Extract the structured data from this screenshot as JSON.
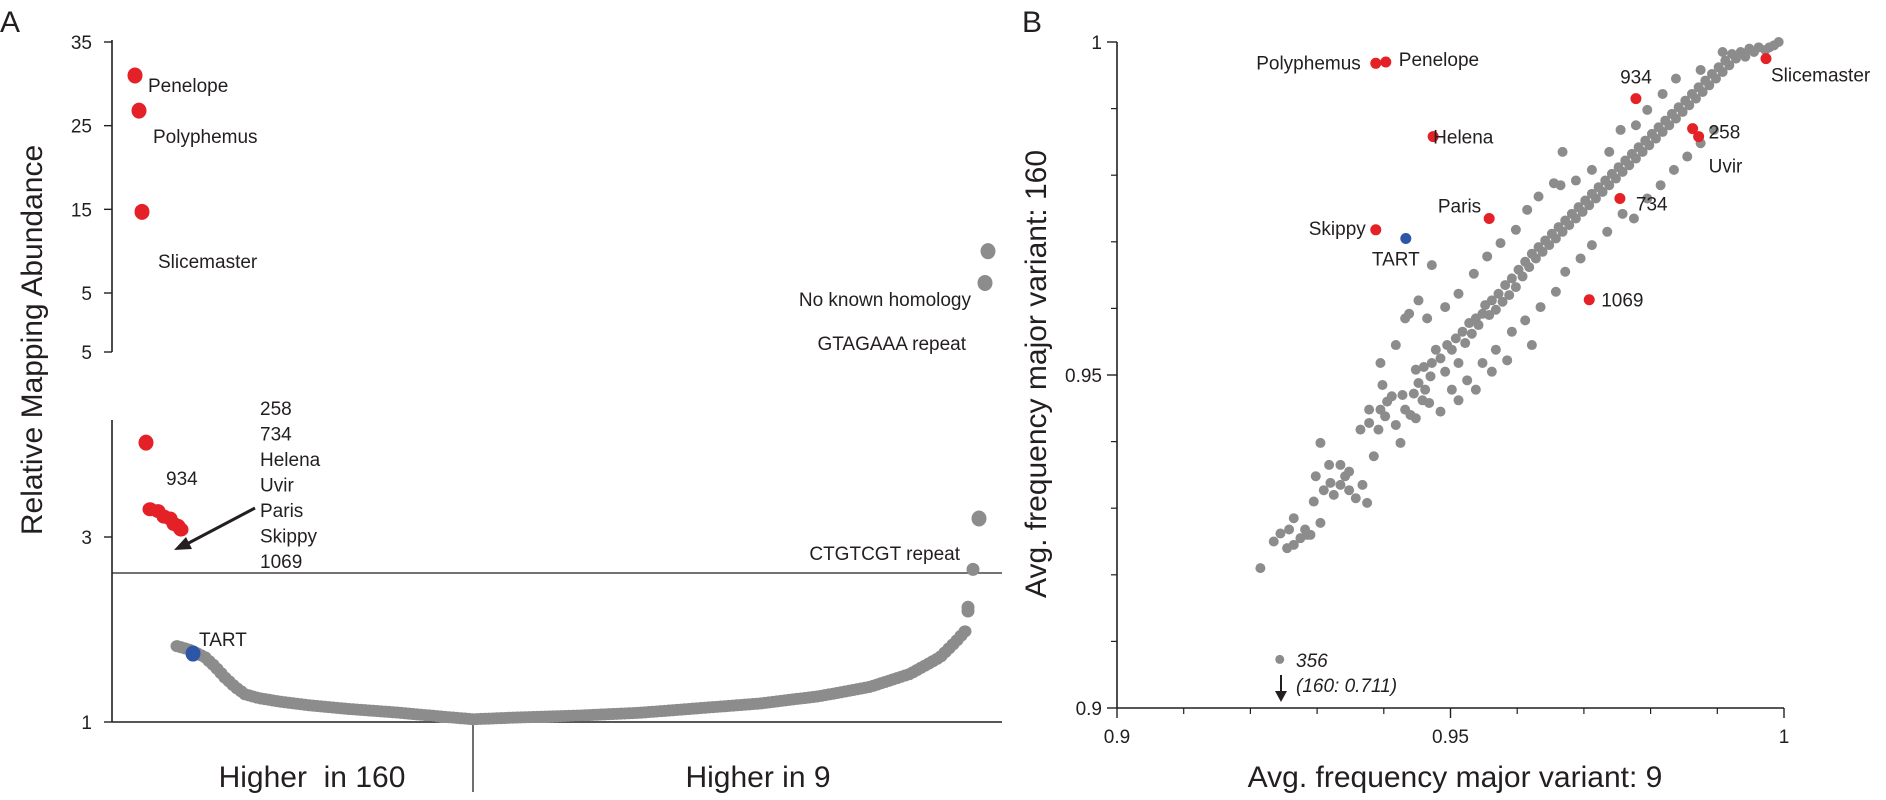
{
  "chart_data": [
    {
      "panel": "A",
      "type": "scatter",
      "ylabel": "Relative Mapping Abundance",
      "x_categories": [
        "Higher  in 160",
        "Higher in 9"
      ],
      "y_axis_lower": {
        "ticks": [
          1,
          3,
          5
        ],
        "range": [
          1,
          5
        ],
        "reference_line": 3
      },
      "y_axis_upper": {
        "ticks": [
          5,
          15,
          25,
          35
        ],
        "range": [
          5,
          35
        ]
      },
      "grid": false,
      "labeled_points": [
        {
          "name": "Penelope",
          "y": 31.0,
          "group": "Higher in 160",
          "color": "#e32126"
        },
        {
          "name": "Polyphemus",
          "y": 26.8,
          "group": "Higher in 160",
          "color": "#e32126"
        },
        {
          "name": "Slicemaster",
          "y": 14.7,
          "group": "Higher in 160",
          "color": "#e32126"
        },
        {
          "name": "934",
          "y": 4.02,
          "group": "Higher in 160",
          "color": "#e32126"
        },
        {
          "name": "TART",
          "y": 1.74,
          "group": "Higher in 160",
          "color": "#2e56a6"
        },
        {
          "name": "No known homology",
          "y": 10.0,
          "group": "Higher in 9",
          "color": "#8c8c8c"
        },
        {
          "name": "GTAGAAA repeat",
          "y": 6.2,
          "group": "Higher in 9",
          "color": "#8c8c8c"
        },
        {
          "name": "CTGTCGT repeat",
          "y": 3.2,
          "group": "Higher in 9",
          "color": "#8c8c8c"
        }
      ],
      "cluster_points": {
        "names": [
          "258",
          "734",
          "Helena",
          "Uvir",
          "Paris",
          "Skippy",
          "1069"
        ],
        "y": [
          3.3,
          3.28,
          3.22,
          3.2,
          3.14,
          3.12,
          3.08
        ],
        "color": "#e32126"
      }
    },
    {
      "panel": "B",
      "type": "scatter",
      "xlabel": "Avg. frequency major variant: 9",
      "ylabel": "Avg. frequency major variant: 160",
      "xlim": [
        0.9,
        1.0
      ],
      "ylim": [
        0.9,
        1.0
      ],
      "xticks": [
        "0.9",
        "0.95",
        "1"
      ],
      "yticks": [
        "0.9",
        "0.95",
        "1"
      ],
      "grid": false,
      "labeled_points": [
        {
          "name": "Polyphemus",
          "x": 0.9388,
          "y": 0.9968,
          "color": "#e32126"
        },
        {
          "name": "Penelope",
          "x": 0.9403,
          "y": 0.997,
          "color": "#e32126"
        },
        {
          "name": "934",
          "x": 0.9778,
          "y": 0.9915,
          "color": "#e32126"
        },
        {
          "name": "Slicemaster",
          "x": 0.9973,
          "y": 0.9975,
          "color": "#e32126"
        },
        {
          "name": "Helena",
          "x": 0.9474,
          "y": 0.9858,
          "color": "#e32126"
        },
        {
          "name": "258",
          "x": 0.9863,
          "y": 0.987,
          "color": "#e32126"
        },
        {
          "name": "Uvir",
          "x": 0.9872,
          "y": 0.9858,
          "color": "#e32126"
        },
        {
          "name": "734",
          "x": 0.9754,
          "y": 0.9765,
          "color": "#e32126"
        },
        {
          "name": "Paris",
          "x": 0.9558,
          "y": 0.9735,
          "color": "#e32126"
        },
        {
          "name": "Skippy",
          "x": 0.9388,
          "y": 0.9718,
          "color": "#e32126"
        },
        {
          "name": "TART",
          "x": 0.9433,
          "y": 0.9705,
          "color": "#2e56a6"
        },
        {
          "name": "1069",
          "x": 0.9708,
          "y": 0.9613,
          "color": "#e32126"
        }
      ],
      "outlier_annotation": {
        "id": "356",
        "note": "(160: 0.711)",
        "x": 0.9244,
        "y": 0.9073
      },
      "background_points": {
        "color": "#8c8c8c",
        "points": [
          [
            0.9215,
            0.921
          ],
          [
            0.9235,
            0.925
          ],
          [
            0.9255,
            0.924
          ],
          [
            0.9265,
            0.9245
          ],
          [
            0.9275,
            0.9255
          ],
          [
            0.9285,
            0.926
          ],
          [
            0.9265,
            0.9285
          ],
          [
            0.929,
            0.926
          ],
          [
            0.9305,
            0.9278
          ],
          [
            0.9295,
            0.931
          ],
          [
            0.931,
            0.9327
          ],
          [
            0.9325,
            0.932
          ],
          [
            0.932,
            0.9338
          ],
          [
            0.9335,
            0.9335
          ],
          [
            0.9348,
            0.9327
          ],
          [
            0.9335,
            0.9365
          ],
          [
            0.9348,
            0.9355
          ],
          [
            0.9358,
            0.9315
          ],
          [
            0.9368,
            0.9335
          ],
          [
            0.9375,
            0.9308
          ],
          [
            0.9305,
            0.9398
          ],
          [
            0.9385,
            0.9378
          ],
          [
            0.9378,
            0.9428
          ],
          [
            0.9392,
            0.9418
          ],
          [
            0.9402,
            0.9438
          ],
          [
            0.9395,
            0.9448
          ],
          [
            0.9405,
            0.946
          ],
          [
            0.9418,
            0.9425
          ],
          [
            0.9425,
            0.9398
          ],
          [
            0.9432,
            0.9448
          ],
          [
            0.9428,
            0.947
          ],
          [
            0.944,
            0.944
          ],
          [
            0.9448,
            0.9435
          ],
          [
            0.9445,
            0.9472
          ],
          [
            0.9458,
            0.9462
          ],
          [
            0.9462,
            0.9478
          ],
          [
            0.9452,
            0.9488
          ],
          [
            0.9448,
            0.9508
          ],
          [
            0.946,
            0.9512
          ],
          [
            0.947,
            0.9498
          ],
          [
            0.9472,
            0.9518
          ],
          [
            0.9478,
            0.9538
          ],
          [
            0.9485,
            0.9525
          ],
          [
            0.9492,
            0.9505
          ],
          [
            0.9495,
            0.9545
          ],
          [
            0.9502,
            0.9538
          ],
          [
            0.9508,
            0.9555
          ],
          [
            0.9512,
            0.9518
          ],
          [
            0.9518,
            0.9565
          ],
          [
            0.9522,
            0.9548
          ],
          [
            0.9528,
            0.9578
          ],
          [
            0.9532,
            0.9562
          ],
          [
            0.9538,
            0.9585
          ],
          [
            0.9542,
            0.9575
          ],
          [
            0.9548,
            0.9592
          ],
          [
            0.9552,
            0.9605
          ],
          [
            0.9558,
            0.959
          ],
          [
            0.9562,
            0.9612
          ],
          [
            0.9568,
            0.9598
          ],
          [
            0.9572,
            0.9622
          ],
          [
            0.9578,
            0.961
          ],
          [
            0.9582,
            0.9635
          ],
          [
            0.9588,
            0.962
          ],
          [
            0.9592,
            0.9645
          ],
          [
            0.9598,
            0.9632
          ],
          [
            0.9602,
            0.9658
          ],
          [
            0.9608,
            0.9648
          ],
          [
            0.9612,
            0.967
          ],
          [
            0.9618,
            0.9662
          ],
          [
            0.9622,
            0.9682
          ],
          [
            0.9628,
            0.9675
          ],
          [
            0.9632,
            0.9692
          ],
          [
            0.9638,
            0.9685
          ],
          [
            0.9642,
            0.9702
          ],
          [
            0.9648,
            0.9695
          ],
          [
            0.9652,
            0.9712
          ],
          [
            0.9658,
            0.9705
          ],
          [
            0.9662,
            0.9722
          ],
          [
            0.9668,
            0.9715
          ],
          [
            0.9672,
            0.9732
          ],
          [
            0.9678,
            0.9725
          ],
          [
            0.9682,
            0.9742
          ],
          [
            0.9688,
            0.9735
          ],
          [
            0.9692,
            0.9752
          ],
          [
            0.9698,
            0.9745
          ],
          [
            0.9702,
            0.9762
          ],
          [
            0.9708,
            0.9755
          ],
          [
            0.9712,
            0.9772
          ],
          [
            0.9718,
            0.9765
          ],
          [
            0.9722,
            0.9782
          ],
          [
            0.9728,
            0.9775
          ],
          [
            0.9732,
            0.9792
          ],
          [
            0.9738,
            0.9785
          ],
          [
            0.9742,
            0.9802
          ],
          [
            0.9748,
            0.9795
          ],
          [
            0.9752,
            0.9812
          ],
          [
            0.9758,
            0.9805
          ],
          [
            0.9762,
            0.9822
          ],
          [
            0.9768,
            0.9815
          ],
          [
            0.9772,
            0.9832
          ],
          [
            0.9778,
            0.9825
          ],
          [
            0.9782,
            0.9842
          ],
          [
            0.9788,
            0.9835
          ],
          [
            0.9792,
            0.9852
          ],
          [
            0.9798,
            0.9845
          ],
          [
            0.9802,
            0.9862
          ],
          [
            0.9808,
            0.9855
          ],
          [
            0.9812,
            0.9872
          ],
          [
            0.9818,
            0.9865
          ],
          [
            0.9822,
            0.9882
          ],
          [
            0.9828,
            0.9875
          ],
          [
            0.9832,
            0.9892
          ],
          [
            0.9838,
            0.9885
          ],
          [
            0.9842,
            0.9902
          ],
          [
            0.9848,
            0.9895
          ],
          [
            0.9852,
            0.9912
          ],
          [
            0.9858,
            0.9905
          ],
          [
            0.9862,
            0.9922
          ],
          [
            0.9868,
            0.9915
          ],
          [
            0.9872,
            0.9932
          ],
          [
            0.9878,
            0.9925
          ],
          [
            0.9882,
            0.9942
          ],
          [
            0.9888,
            0.9935
          ],
          [
            0.9892,
            0.9952
          ],
          [
            0.9898,
            0.9945
          ],
          [
            0.9902,
            0.9962
          ],
          [
            0.9908,
            0.9955
          ],
          [
            0.9912,
            0.9972
          ],
          [
            0.9918,
            0.9965
          ],
          [
            0.9922,
            0.9982
          ],
          [
            0.9928,
            0.9975
          ],
          [
            0.9935,
            0.9985
          ],
          [
            0.9942,
            0.9978
          ],
          [
            0.9948,
            0.999
          ],
          [
            0.9955,
            0.9985
          ],
          [
            0.9962,
            0.9992
          ],
          [
            0.9972,
            0.9988
          ],
          [
            0.9985,
            0.9995
          ],
          [
            0.9992,
            1.0
          ],
          [
            0.9978,
            0.9992
          ],
          [
            0.9395,
            0.9518
          ],
          [
            0.9418,
            0.9545
          ],
          [
            0.9432,
            0.9585
          ],
          [
            0.9452,
            0.9612
          ],
          [
            0.9465,
            0.9585
          ],
          [
            0.9492,
            0.9602
          ],
          [
            0.9512,
            0.9622
          ],
          [
            0.9535,
            0.9652
          ],
          [
            0.9555,
            0.9678
          ],
          [
            0.9575,
            0.9698
          ],
          [
            0.9598,
            0.9718
          ],
          [
            0.9615,
            0.9748
          ],
          [
            0.9632,
            0.9768
          ],
          [
            0.9655,
            0.9788
          ],
          [
            0.9668,
            0.9835
          ],
          [
            0.9688,
            0.9792
          ],
          [
            0.9712,
            0.9808
          ],
          [
            0.9738,
            0.9835
          ],
          [
            0.9755,
            0.9868
          ],
          [
            0.9778,
            0.9875
          ],
          [
            0.9795,
            0.9898
          ],
          [
            0.9818,
            0.9922
          ],
          [
            0.9838,
            0.9945
          ],
          [
            0.9875,
            0.9958
          ],
          [
            0.9908,
            0.9985
          ],
          [
            0.9502,
            0.9478
          ],
          [
            0.9525,
            0.9492
          ],
          [
            0.9548,
            0.9518
          ],
          [
            0.9568,
            0.9538
          ],
          [
            0.9592,
            0.9565
          ],
          [
            0.9612,
            0.9582
          ],
          [
            0.9635,
            0.9602
          ],
          [
            0.9658,
            0.9625
          ],
          [
            0.9672,
            0.9655
          ],
          [
            0.9695,
            0.9675
          ],
          [
            0.9712,
            0.9695
          ],
          [
            0.9735,
            0.9715
          ],
          [
            0.9758,
            0.9742
          ],
          [
            0.9775,
            0.9735
          ],
          [
            0.9795,
            0.9765
          ],
          [
            0.9815,
            0.9785
          ],
          [
            0.9835,
            0.9808
          ],
          [
            0.9855,
            0.9828
          ],
          [
            0.9875,
            0.9848
          ],
          [
            0.9895,
            0.9868
          ],
          [
            0.9472,
            0.9665
          ],
          [
            0.9665,
            0.9785
          ],
          [
            0.9438,
            0.9592
          ],
          [
            0.9468,
            0.9458
          ],
          [
            0.9485,
            0.9445
          ],
          [
            0.9512,
            0.9462
          ],
          [
            0.9538,
            0.9478
          ],
          [
            0.9562,
            0.9505
          ],
          [
            0.9585,
            0.9522
          ],
          [
            0.9622,
            0.9545
          ],
          [
            0.9365,
            0.9418
          ],
          [
            0.9378,
            0.9448
          ],
          [
            0.9412,
            0.9468
          ],
          [
            0.9398,
            0.9485
          ],
          [
            0.9342,
            0.9348
          ],
          [
            0.9318,
            0.9365
          ],
          [
            0.9298,
            0.9348
          ],
          [
            0.9282,
            0.9268
          ],
          [
            0.9258,
            0.9268
          ],
          [
            0.9245,
            0.9262
          ]
        ]
      }
    }
  ]
}
